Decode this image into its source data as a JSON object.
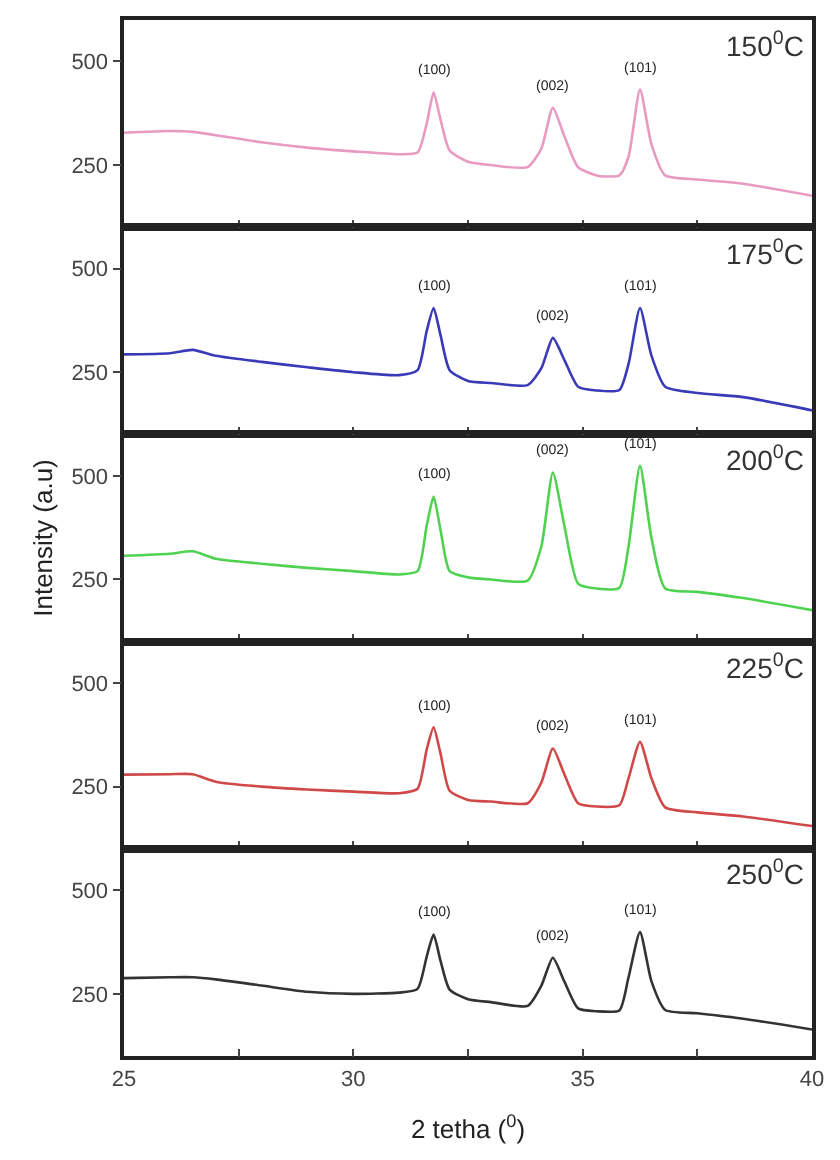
{
  "chart_data": [
    {
      "type": "line",
      "x": [
        25,
        26,
        26.5,
        27,
        28,
        29,
        30,
        31,
        31.4,
        31.6,
        31.75,
        31.9,
        32.1,
        32.5,
        33,
        33.8,
        34.1,
        34.35,
        34.6,
        34.9,
        35.3,
        35.8,
        36.0,
        36.25,
        36.5,
        36.8,
        37.5,
        38.5,
        40
      ],
      "series": [
        {
          "color": "#e89ac0",
          "values": [
            328,
            332,
            330,
            322,
            305,
            292,
            283,
            276,
            280,
            350,
            425,
            360,
            285,
            258,
            250,
            245,
            290,
            388,
            320,
            245,
            225,
            225,
            270,
            432,
            300,
            225,
            215,
            205,
            176
          ]
        }
      ],
      "xlim": [
        25,
        40
      ],
      "xticks": [
        25,
        {
          "value": 27.5,
          "label": null
        },
        30,
        {
          "value": 32.5,
          "label": null
        },
        35,
        {
          "value": 37.5,
          "label": null
        },
        40
      ],
      "ylim": [
        100,
        600
      ],
      "yticks": [
        250,
        500
      ],
      "tick_labels": "y",
      "annotations": [
        "150$^{0}$C",
        {
          "text": "(100)",
          "x": 31.75,
          "y": 425
        },
        {
          "text": "(002)",
          "x": 34.35,
          "y": 388
        },
        {
          "text": "(101)",
          "x": 36.25,
          "y": 432
        }
      ]
    },
    {
      "type": "line",
      "x": [
        25,
        26,
        26.5,
        27,
        28,
        29,
        30,
        31,
        31.4,
        31.6,
        31.75,
        31.9,
        32.1,
        32.5,
        33,
        33.8,
        34.1,
        34.35,
        34.6,
        34.9,
        35.3,
        35.8,
        36.0,
        36.25,
        36.5,
        36.8,
        37.5,
        38.5,
        40
      ],
      "series": [
        {
          "color": "#3a3ab8",
          "values": [
            293,
            296,
            304,
            290,
            275,
            262,
            250,
            243,
            255,
            350,
            405,
            340,
            255,
            229,
            224,
            219,
            260,
            333,
            280,
            215,
            206,
            207,
            270,
            405,
            290,
            215,
            200,
            190,
            158
          ]
        }
      ],
      "xlim": [
        25,
        40
      ],
      "xticks": [
        25,
        {
          "value": 27.5,
          "label": null
        },
        30,
        {
          "value": 32.5,
          "label": null
        },
        35,
        {
          "value": 37.5,
          "label": null
        },
        40
      ],
      "ylim": [
        100,
        600
      ],
      "yticks": [
        250,
        500
      ],
      "tick_labels": "y",
      "annotations": [
        "175$^{0}$C",
        {
          "text": "(100)",
          "x": 31.75,
          "y": 405
        },
        {
          "text": "(002)",
          "x": 34.35,
          "y": 333
        },
        {
          "text": "(101)",
          "x": 36.25,
          "y": 405
        }
      ]
    },
    {
      "type": "line",
      "x": [
        25,
        26,
        26.5,
        27,
        28,
        29,
        30,
        31,
        31.4,
        31.6,
        31.75,
        31.9,
        32.1,
        32.5,
        33,
        33.8,
        34.1,
        34.35,
        34.6,
        34.9,
        35.3,
        35.8,
        36.0,
        36.25,
        36.5,
        36.8,
        37.5,
        38.5,
        40
      ],
      "series": [
        {
          "color": "#4fd24f",
          "values": [
            307,
            312,
            318,
            300,
            288,
            278,
            270,
            262,
            270,
            380,
            450,
            370,
            270,
            255,
            250,
            247,
            330,
            508,
            380,
            240,
            228,
            230,
            330,
            524,
            350,
            228,
            220,
            205,
            176
          ]
        }
      ],
      "xlim": [
        25,
        40
      ],
      "xticks": [
        25,
        {
          "value": 27.5,
          "label": null
        },
        30,
        {
          "value": 32.5,
          "label": null
        },
        35,
        {
          "value": 37.5,
          "label": null
        },
        40
      ],
      "ylim": [
        100,
        600
      ],
      "yticks": [
        250,
        500
      ],
      "tick_labels": "y",
      "ylabel": "Intensity (a.u)",
      "annotations": [
        "200$^{0}$C",
        {
          "text": "(100)",
          "x": 31.75,
          "y": 450
        },
        {
          "text": "(002)",
          "x": 34.35,
          "y": 508
        },
        {
          "text": "(101)",
          "x": 36.25,
          "y": 524
        }
      ]
    },
    {
      "type": "line",
      "x": [
        25,
        26,
        26.5,
        27,
        28,
        29,
        30,
        31,
        31.4,
        31.6,
        31.75,
        31.9,
        32.1,
        32.5,
        33,
        33.8,
        34.1,
        34.35,
        34.6,
        34.9,
        35.3,
        35.8,
        36.0,
        36.25,
        36.5,
        36.8,
        37.5,
        38.5,
        40
      ],
      "series": [
        {
          "color": "#d04848",
          "values": [
            279,
            280,
            280,
            262,
            250,
            243,
            238,
            234,
            245,
            340,
            393,
            330,
            240,
            218,
            214,
            210,
            260,
            342,
            280,
            210,
            202,
            205,
            270,
            358,
            270,
            200,
            188,
            178,
            155
          ]
        }
      ],
      "xlim": [
        25,
        40
      ],
      "xticks": [
        25,
        {
          "value": 27.5,
          "label": null
        },
        30,
        {
          "value": 32.5,
          "label": null
        },
        35,
        {
          "value": 37.5,
          "label": null
        },
        40
      ],
      "ylim": [
        100,
        600
      ],
      "yticks": [
        250,
        500
      ],
      "tick_labels": "y",
      "annotations": [
        "225$^{0}$C",
        {
          "text": "(100)",
          "x": 31.75,
          "y": 393
        },
        {
          "text": "(002)",
          "x": 34.35,
          "y": 342
        },
        {
          "text": "(101)",
          "x": 36.25,
          "y": 358
        }
      ]
    },
    {
      "type": "line",
      "x": [
        25,
        26,
        26.5,
        27,
        28,
        29,
        30,
        31,
        31.4,
        31.6,
        31.75,
        31.9,
        32.1,
        32.5,
        33,
        33.8,
        34.1,
        34.35,
        34.6,
        34.9,
        35.3,
        35.8,
        36.0,
        36.25,
        36.5,
        36.8,
        37.5,
        38.5,
        40
      ],
      "series": [
        {
          "color": "#333333",
          "values": [
            288,
            290,
            290,
            285,
            270,
            255,
            250,
            253,
            262,
            340,
            393,
            330,
            260,
            237,
            230,
            221,
            270,
            337,
            280,
            215,
            208,
            210,
            290,
            399,
            280,
            211,
            203,
            190,
            164
          ]
        }
      ],
      "xlim": [
        25,
        40
      ],
      "xticks": [
        25,
        {
          "value": 27.5,
          "label": null
        },
        30,
        {
          "value": 32.5,
          "label": null
        },
        35,
        {
          "value": 37.5,
          "label": null
        },
        40
      ],
      "ylim": [
        100,
        600
      ],
      "yticks": [
        250,
        500
      ],
      "xlabel": "2 tetha ($^{0}$)",
      "annotations": [
        "250$^{0}$C",
        {
          "text": "(100)",
          "x": 31.75,
          "y": 393
        },
        {
          "text": "(002)",
          "x": 34.35,
          "y": 337
        },
        {
          "text": "(101)",
          "x": 36.25,
          "y": 399
        }
      ]
    }
  ]
}
